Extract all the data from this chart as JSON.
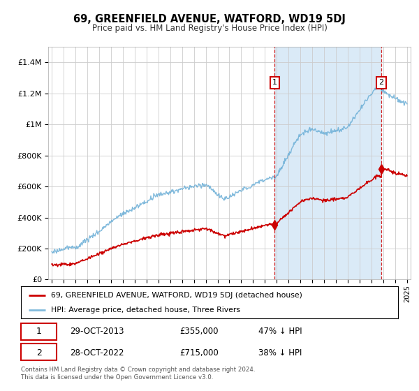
{
  "title": "69, GREENFIELD AVENUE, WATFORD, WD19 5DJ",
  "subtitle": "Price paid vs. HM Land Registry's House Price Index (HPI)",
  "footer": "Contains HM Land Registry data © Crown copyright and database right 2024.\nThis data is licensed under the Open Government Licence v3.0.",
  "legend_line1": "69, GREENFIELD AVENUE, WATFORD, WD19 5DJ (detached house)",
  "legend_line2": "HPI: Average price, detached house, Three Rivers",
  "transaction1_date": "29-OCT-2013",
  "transaction1_price": "£355,000",
  "transaction1_hpi": "47% ↓ HPI",
  "transaction2_date": "28-OCT-2022",
  "transaction2_price": "£715,000",
  "transaction2_hpi": "38% ↓ HPI",
  "hpi_color": "#6baed6",
  "hpi_fill_color": "#d6e8f5",
  "price_color": "#cc0000",
  "vline_color": "#cc0000",
  "plot_bg_color": "#f5f5f5",
  "shaded_bg_color": "#ddeeff",
  "ylim": [
    0,
    1500000
  ],
  "yticks": [
    0,
    200000,
    400000,
    600000,
    800000,
    1000000,
    1200000,
    1400000
  ],
  "xmin": 1995,
  "xmax": 2025,
  "t1_x": 2013.83,
  "t2_x": 2022.83,
  "t1_price": 355000,
  "t2_price": 715000
}
